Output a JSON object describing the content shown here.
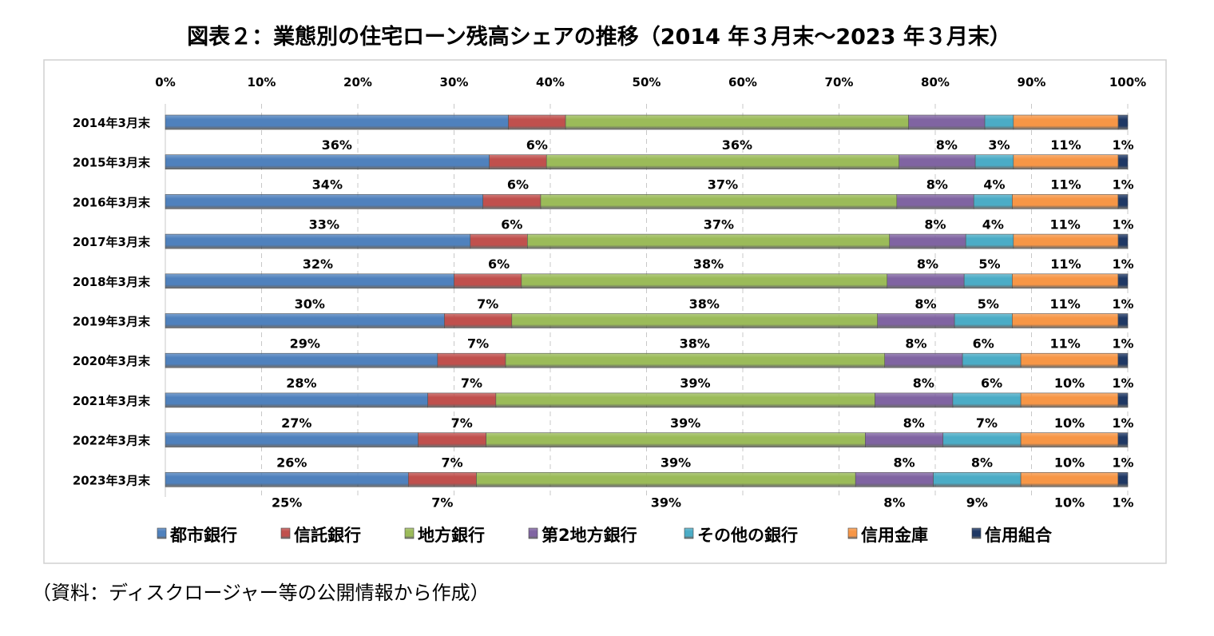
{
  "title": "図表２：業態別の住宅ローン残高シェアの推移（2014 年３月末～2023 年３月末）",
  "source_note": "（資料：ディスクロージャー等の公開情報から作成）",
  "chart_data": {
    "type": "bar",
    "orientation": "horizontal",
    "stacked": "percent",
    "xlim": [
      0,
      100
    ],
    "x_ticks": [
      "0%",
      "10%",
      "20%",
      "30%",
      "40%",
      "50%",
      "60%",
      "70%",
      "80%",
      "90%",
      "100%"
    ],
    "x_axis_position": "top",
    "grid": "vertical dashed",
    "legend_position": "bottom",
    "categories": [
      "2014年3月末",
      "2015年3月末",
      "2016年3月末",
      "2017年3月末",
      "2018年3月末",
      "2019年3月末",
      "2020年3月末",
      "2021年3月末",
      "2022年3月末",
      "2023年3月末"
    ],
    "series": [
      {
        "name": "都市銀行",
        "color": "#4f81bd",
        "values": [
          36,
          34,
          33,
          32,
          30,
          29,
          28,
          27,
          26,
          25
        ]
      },
      {
        "name": "信託銀行",
        "color": "#c0504d",
        "values": [
          6,
          6,
          6,
          6,
          7,
          7,
          7,
          7,
          7,
          7
        ]
      },
      {
        "name": "地方銀行",
        "color": "#9bbb59",
        "values": [
          36,
          37,
          37,
          38,
          38,
          38,
          39,
          39,
          39,
          39
        ]
      },
      {
        "name": "第2地方銀行",
        "color": "#8064a2",
        "values": [
          8,
          8,
          8,
          8,
          8,
          8,
          8,
          8,
          8,
          8
        ]
      },
      {
        "name": "その他の銀行",
        "color": "#4bacc6",
        "values": [
          3,
          4,
          4,
          5,
          5,
          6,
          6,
          7,
          8,
          9
        ]
      },
      {
        "name": "信用金庫",
        "color": "#f79646",
        "values": [
          11,
          11,
          11,
          11,
          11,
          11,
          10,
          10,
          10,
          10
        ]
      },
      {
        "name": "信用組合",
        "color": "#1f3864",
        "values": [
          1,
          1,
          1,
          1,
          1,
          1,
          1,
          1,
          1,
          1
        ]
      }
    ],
    "data_label_suffix": "%"
  }
}
